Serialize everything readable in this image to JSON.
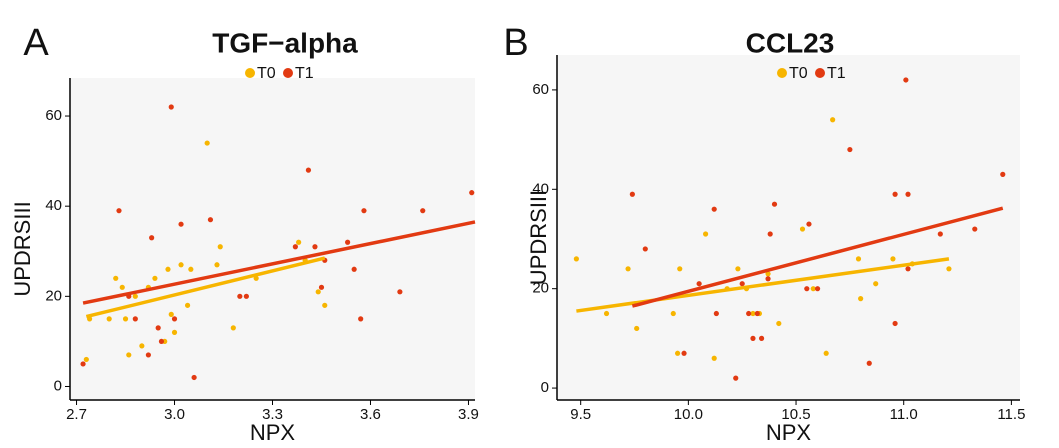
{
  "chart_data": [
    {
      "type": "scatter",
      "label": "A",
      "title": "TGF−alpha",
      "x_label": "NPX",
      "y_label": "UPDRSIII",
      "xlim": [
        2.68,
        3.92
      ],
      "ylim": [
        -3,
        64
      ],
      "xticks": [
        2.7,
        {
          "value": 3,
          "label": "3.0"
        },
        3.3,
        3.6,
        3.9
      ],
      "yticks": [
        0,
        20,
        40,
        60
      ],
      "series": [
        {
          "name": "T0",
          "color": "#f7b500",
          "x": [
            2.73,
            2.74,
            2.8,
            2.82,
            2.84,
            2.85,
            2.86,
            2.88,
            2.9,
            2.92,
            2.94,
            2.97,
            2.98,
            2.99,
            3.0,
            3.02,
            3.04,
            3.05,
            3.1,
            3.13,
            3.14,
            3.18,
            3.25,
            3.38,
            3.44,
            3.46,
            3.4
          ],
          "values": [
            6,
            15,
            15,
            24,
            22,
            15,
            7,
            20,
            9,
            22,
            24,
            10,
            26,
            16,
            12,
            27,
            18,
            26,
            54,
            27,
            31,
            13,
            24,
            32,
            21,
            18,
            28
          ],
          "fit": {
            "x": [
              2.73,
              3.46
            ],
            "y": [
              15.5,
              28.5
            ]
          }
        },
        {
          "name": "T1",
          "color": "#e23a12",
          "x": [
            2.72,
            2.83,
            2.86,
            2.88,
            2.92,
            2.93,
            2.95,
            2.96,
            2.99,
            3.0,
            3.02,
            3.06,
            3.11,
            3.2,
            3.22,
            3.37,
            3.41,
            3.43,
            3.45,
            3.46,
            3.53,
            3.55,
            3.57,
            3.58,
            3.69,
            3.76,
            3.91
          ],
          "values": [
            5,
            39,
            20,
            15,
            7,
            33,
            13,
            10,
            62,
            15,
            36,
            2,
            37,
            20,
            20,
            31,
            48,
            31,
            22,
            28,
            32,
            26,
            15,
            39,
            21,
            39,
            43
          ],
          "fit": {
            "x": [
              2.72,
              3.92
            ],
            "y": [
              18.5,
              36.5
            ]
          }
        }
      ]
    },
    {
      "type": "scatter",
      "label": "B",
      "title": "CCL23",
      "x_label": "NPX",
      "y_label": "UPDRSIII",
      "xlim": [
        9.39,
        11.54
      ],
      "ylim": [
        -2.4,
        63
      ],
      "xticks": [
        9.5,
        {
          "value": 10,
          "label": "10.0"
        },
        10.5,
        {
          "value": 11,
          "label": "11.0"
        },
        11.5
      ],
      "yticks": [
        0,
        20,
        40,
        60
      ],
      "series": [
        {
          "name": "T0",
          "color": "#f7b500",
          "x": [
            9.48,
            9.62,
            9.72,
            9.76,
            9.93,
            9.95,
            9.96,
            10.08,
            10.12,
            10.18,
            10.23,
            10.27,
            10.3,
            10.33,
            10.37,
            10.42,
            10.53,
            10.58,
            10.64,
            10.67,
            10.79,
            10.8,
            10.87,
            10.95,
            11.04,
            11.21
          ],
          "values": [
            26,
            15,
            24,
            12,
            15,
            7,
            24,
            31,
            6,
            20,
            24,
            20,
            15,
            15,
            23,
            13,
            32,
            20,
            7,
            54,
            26,
            18,
            21,
            26,
            25,
            24
          ],
          "fit": {
            "x": [
              9.48,
              11.21
            ],
            "y": [
              15.5,
              26
            ]
          }
        },
        {
          "name": "T1",
          "color": "#e23a12",
          "x": [
            9.74,
            9.8,
            9.98,
            10.05,
            10.12,
            10.13,
            10.22,
            10.25,
            10.28,
            10.3,
            10.32,
            10.34,
            10.37,
            10.38,
            10.4,
            10.55,
            10.56,
            10.6,
            10.75,
            10.84,
            10.96,
            10.96,
            11.01,
            11.02,
            11.02,
            11.17,
            11.33,
            11.46
          ],
          "values": [
            39,
            28,
            7,
            21,
            36,
            15,
            2,
            21,
            15,
            10,
            15,
            10,
            22,
            31,
            37,
            20,
            33,
            20,
            48,
            5,
            13,
            39,
            62,
            39,
            24,
            31,
            32,
            43
          ],
          "fit": {
            "x": [
              9.74,
              11.46
            ],
            "y": [
              16.5,
              36.2
            ]
          }
        }
      ]
    }
  ]
}
